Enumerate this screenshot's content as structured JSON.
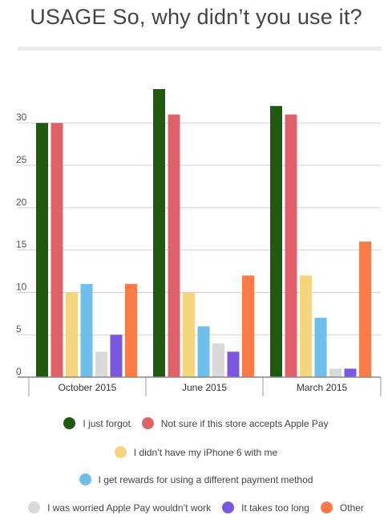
{
  "title": "USAGE So, why didn’t you use it?",
  "chart_data": {
    "type": "bar",
    "categories": [
      "October 2015",
      "June 2015",
      "March 2015"
    ],
    "ylim": [
      0,
      34
    ],
    "yticks": [
      0,
      5,
      10,
      15,
      20,
      25,
      30
    ],
    "grid": true,
    "legend_position": "bottom",
    "series": [
      {
        "name": "I just forgot",
        "color": "#1f5a0f",
        "values": [
          30,
          34,
          32
        ]
      },
      {
        "name": "Not sure if this store accepts Apple Pay",
        "color": "#e0616a",
        "values": [
          30,
          31,
          31
        ]
      },
      {
        "name": "I didn’t have my iPhone 6 with me",
        "color": "#f5d57f",
        "values": [
          10,
          10,
          12
        ]
      },
      {
        "name": "I get rewards for using a different payment method",
        "color": "#6ec0ea",
        "values": [
          11,
          6,
          7
        ]
      },
      {
        "name": "I was worried Apple Pay wouldn’t work",
        "color": "#d9d9d9",
        "values": [
          3,
          4,
          1
        ]
      },
      {
        "name": "It takes too long",
        "color": "#7b57e0",
        "values": [
          5,
          3,
          1
        ]
      },
      {
        "name": "Other",
        "color": "#fb7b46",
        "values": [
          11,
          12,
          16
        ]
      }
    ]
  },
  "legend_rows": [
    [
      0,
      1
    ],
    [
      2
    ],
    [
      3
    ],
    [
      4,
      5,
      6
    ]
  ]
}
